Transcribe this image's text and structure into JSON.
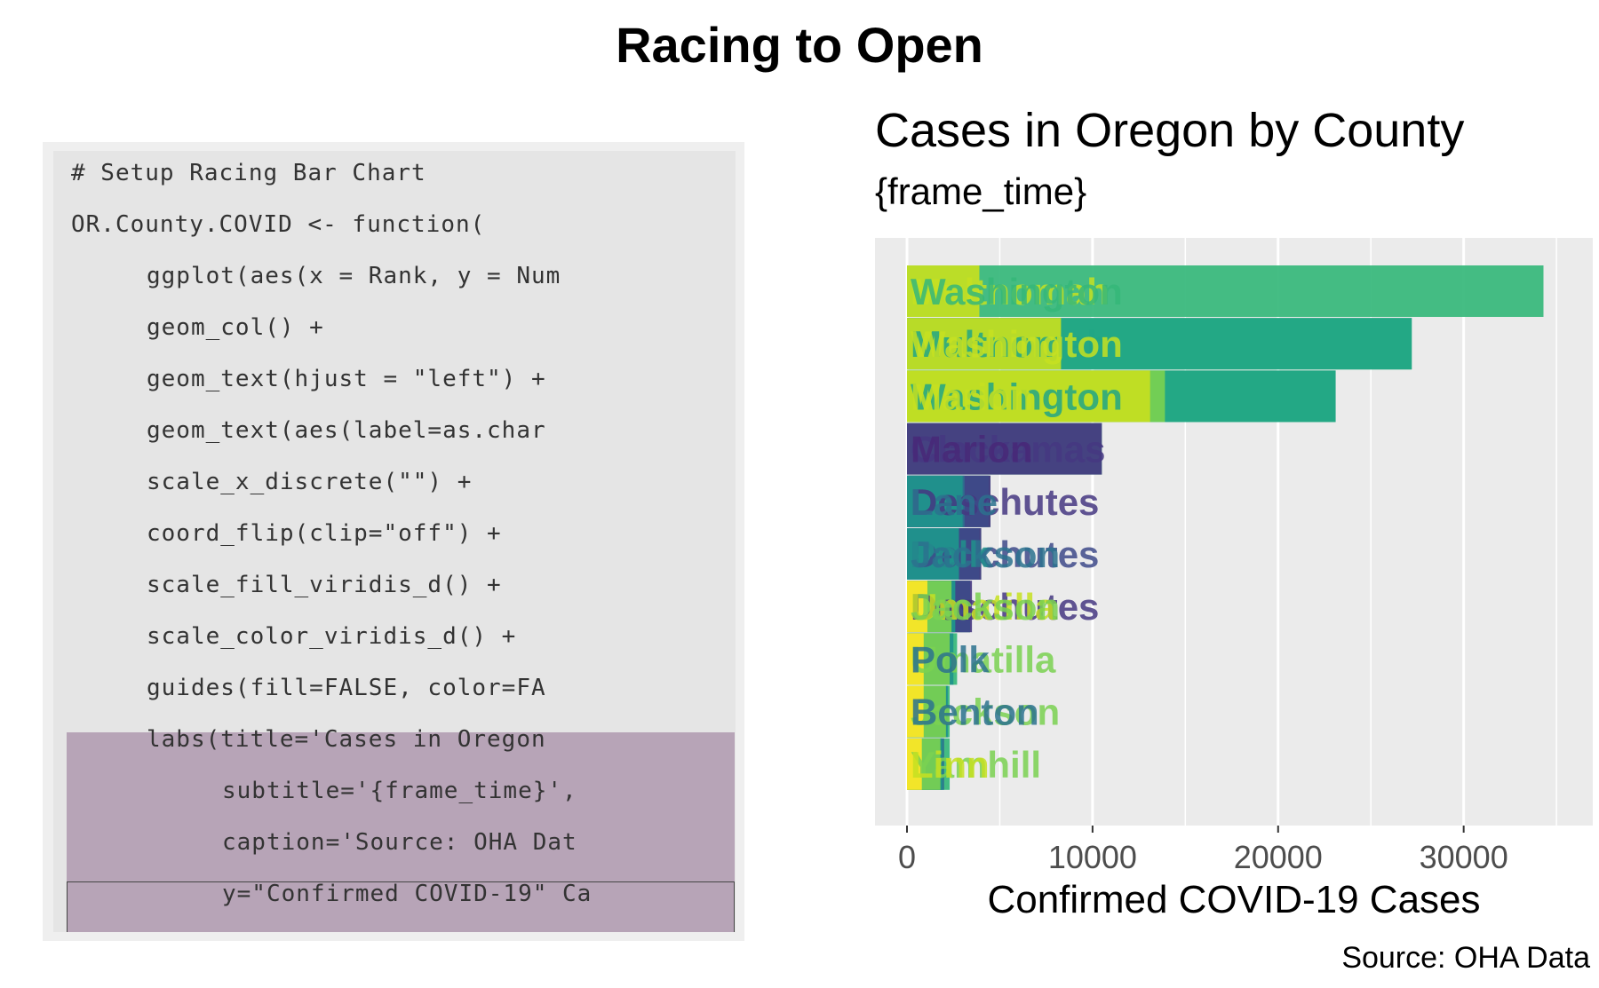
{
  "title": "Racing to Open",
  "code_panel": {
    "lines": [
      "# Setup Racing Bar Chart",
      "OR.County.COVID <- function(",
      "ggplot(aes(x = Rank, y = Num",
      "geom_col() +",
      "geom_text(hjust = \"left\") +",
      "geom_text(aes(label=as.char",
      "scale_x_discrete(\"\") +",
      "coord_flip(clip=\"off\") +",
      "scale_fill_viridis_d() +",
      "scale_color_viridis_d() +",
      "guides(fill=FALSE, color=FA",
      "labs(title='Cases in Oregon",
      "subtitle='{frame_time}',",
      "caption='Source: OHA Dat",
      "y=\"Confirmed COVID-19\" Ca"
    ]
  },
  "chart_data": {
    "type": "bar",
    "orientation": "horizontal",
    "title": "Cases in Oregon by County",
    "subtitle": "{frame_time}",
    "ylabel": "Confirmed COVID-19 Cases",
    "caption": "Source: OHA Data",
    "ylim": [
      0,
      36000
    ],
    "ticks": [
      0,
      10000,
      20000,
      30000
    ],
    "tick_labels": [
      "0",
      "10000",
      "20000",
      "30000"
    ],
    "grid": true,
    "legend": "none",
    "ranks": [
      1,
      2,
      3,
      4,
      5,
      6,
      7,
      8,
      9,
      10
    ],
    "frames": [
      {
        "color": "#35b779",
        "values": [
          34300,
          27200,
          23100,
          10500,
          4500,
          4000,
          3400,
          2700,
          2300,
          2300
        ]
      },
      {
        "color": "#21a685",
        "values": [
          0,
          27200,
          23100,
          0,
          0,
          0,
          0,
          0,
          0,
          0
        ]
      },
      {
        "color": "#453781",
        "values": [
          0,
          0,
          0,
          10500,
          4500,
          4000,
          3500,
          0,
          0,
          0
        ]
      },
      {
        "color": "#3e4a89",
        "values": [
          0,
          0,
          0,
          0,
          4400,
          3900,
          3400,
          0,
          0,
          0
        ]
      },
      {
        "color": "#2c728e",
        "values": [
          0,
          0,
          0,
          0,
          3100,
          2800,
          2600,
          2300,
          2100,
          2000
        ]
      },
      {
        "color": "#20928c",
        "values": [
          0,
          0,
          0,
          0,
          3000,
          2800,
          2600,
          2500,
          2200,
          1900
        ]
      },
      {
        "color": "#7ad151",
        "values": [
          0,
          0,
          13900,
          0,
          0,
          0,
          2400,
          2300,
          2100,
          1800
        ]
      },
      {
        "color": "#c5e021",
        "values": [
          3900,
          8300,
          13100,
          0,
          0,
          0,
          0,
          0,
          0,
          0
        ]
      },
      {
        "color": "#fde725",
        "values": [
          0,
          0,
          0,
          0,
          0,
          0,
          1100,
          900,
          900,
          800
        ]
      }
    ],
    "labels": [
      {
        "rank": 1,
        "name": "Multnomah",
        "color": "#c5e021"
      },
      {
        "rank": 1,
        "name": "Washington",
        "color": "#35b779"
      },
      {
        "rank": 2,
        "name": "Multnomah",
        "color": "#21a685"
      },
      {
        "rank": 2,
        "name": "Washington",
        "color": "#c5e021"
      },
      {
        "rank": 3,
        "name": "Washington",
        "color": "#21a685"
      },
      {
        "rank": 3,
        "name": "Marion",
        "color": "#c5e021"
      },
      {
        "rank": 4,
        "name": "Clackamas",
        "color": "#453781"
      },
      {
        "rank": 4,
        "name": "Marion",
        "color": "#482878"
      },
      {
        "rank": 5,
        "name": "Deschutes",
        "color": "#453781"
      },
      {
        "rank": 5,
        "name": "Lane",
        "color": "#2c728e"
      },
      {
        "rank": 6,
        "name": "Deschutes",
        "color": "#3e4a89"
      },
      {
        "rank": 6,
        "name": "Polk",
        "color": "#20928c"
      },
      {
        "rank": 6,
        "name": "Jackson",
        "color": "#2c728e"
      },
      {
        "rank": 7,
        "name": "Deschutes",
        "color": "#453781"
      },
      {
        "rank": 7,
        "name": "Umatilla",
        "color": "#c5e021"
      },
      {
        "rank": 7,
        "name": "Jackson",
        "color": "#7ad151"
      },
      {
        "rank": 8,
        "name": "Umatilla",
        "color": "#7ad151"
      },
      {
        "rank": 8,
        "name": "Polk",
        "color": "#2c728e"
      },
      {
        "rank": 9,
        "name": "Jackson",
        "color": "#7ad151"
      },
      {
        "rank": 9,
        "name": "Benton",
        "color": "#2c728e"
      },
      {
        "rank": 10,
        "name": "Yamhill",
        "color": "#7ad151"
      },
      {
        "rank": 10,
        "name": "Linn",
        "color": "#c5e021"
      }
    ]
  }
}
